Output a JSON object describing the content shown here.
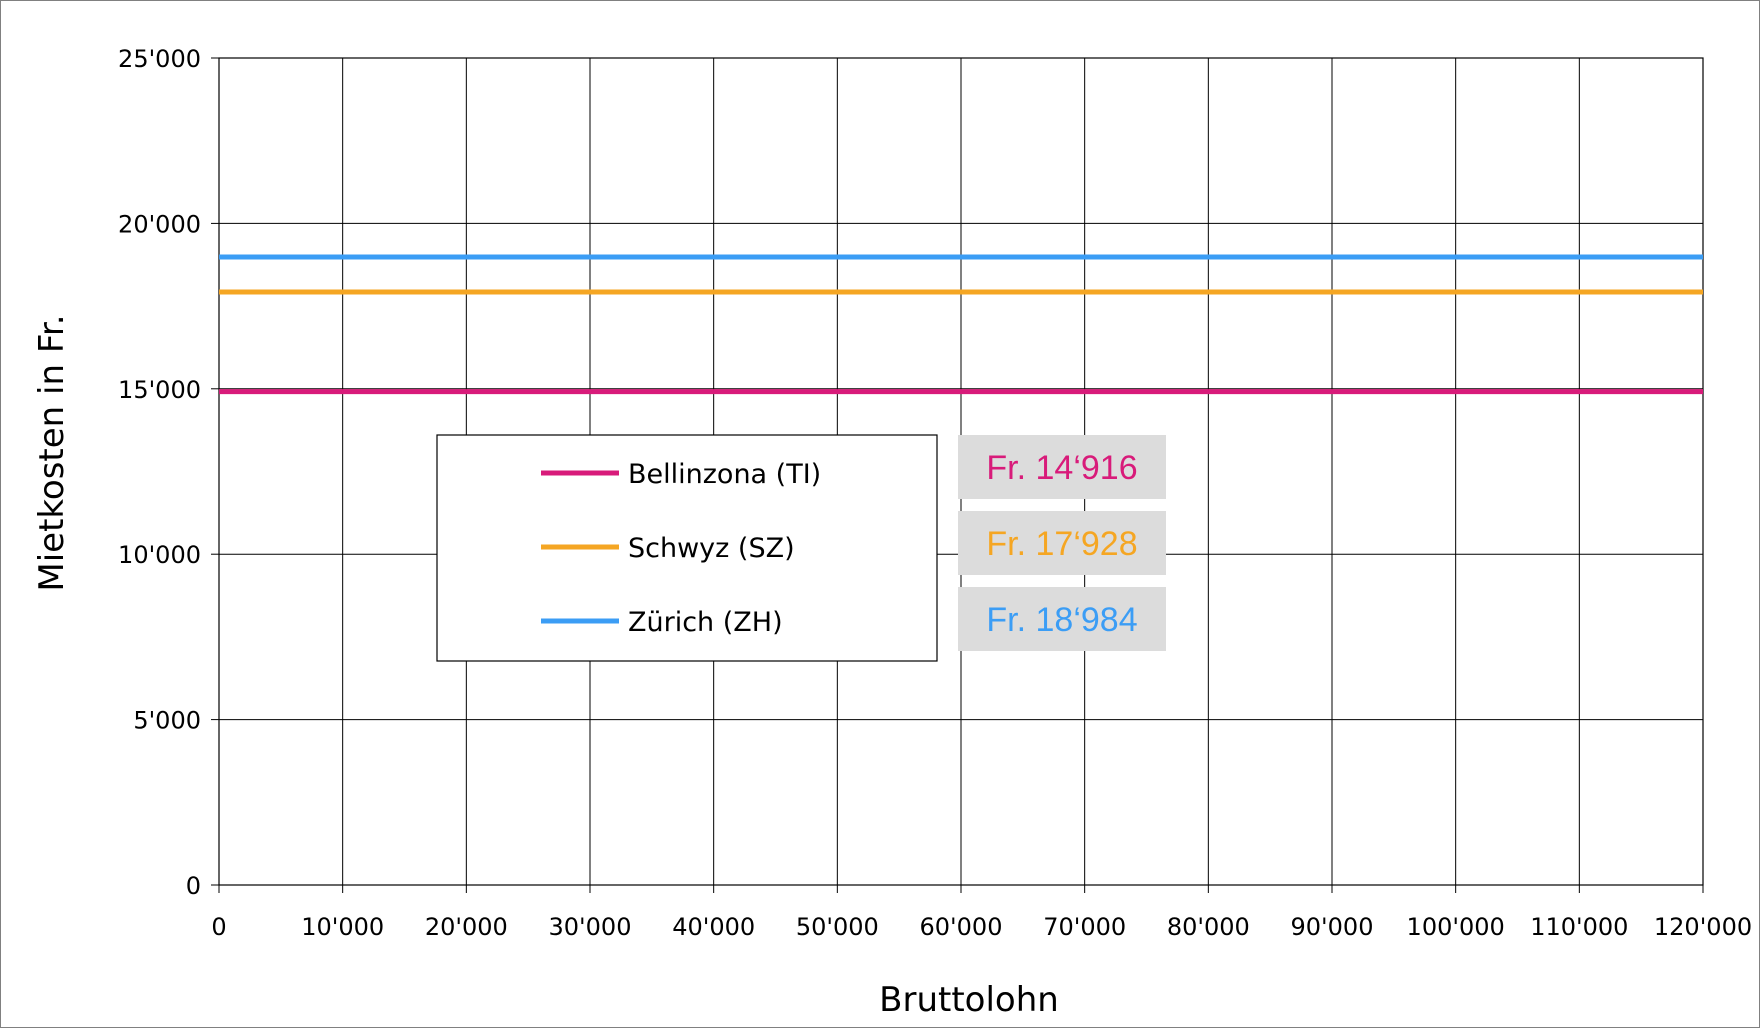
{
  "chart_data": {
    "type": "line",
    "xlabel": "Bruttolohn",
    "ylabel": "Mietkosten in Fr.",
    "xlim": [
      0,
      120000
    ],
    "ylim": [
      0,
      25000
    ],
    "x_ticks": [
      0,
      10000,
      20000,
      30000,
      40000,
      50000,
      60000,
      70000,
      80000,
      90000,
      100000,
      110000,
      120000
    ],
    "x_tick_labels": [
      "0",
      "10'000",
      "20'000",
      "30'000",
      "40'000",
      "50'000",
      "60'000",
      "70'000",
      "80'000",
      "90'000",
      "100'000",
      "110'000",
      "120'000"
    ],
    "y_ticks": [
      0,
      5000,
      10000,
      15000,
      20000,
      25000
    ],
    "y_tick_labels": [
      "0",
      "5'000",
      "10'000",
      "15'000",
      "20'000",
      "25'000"
    ],
    "grid": true,
    "legend_position": "center-left",
    "series": [
      {
        "name": "Bellinzona (TI)",
        "color": "#d81b7a",
        "x": [
          0,
          120000
        ],
        "y": [
          14916,
          14916
        ],
        "annotation": "Fr. 14‘916"
      },
      {
        "name": "Schwyz (SZ)",
        "color": "#f5a623",
        "x": [
          0,
          120000
        ],
        "y": [
          17928,
          17928
        ],
        "annotation": "Fr. 17‘928"
      },
      {
        "name": "Zürich (ZH)",
        "color": "#3b9df5",
        "x": [
          0,
          120000
        ],
        "y": [
          18984,
          18984
        ],
        "annotation": "Fr. 18‘984"
      }
    ]
  }
}
